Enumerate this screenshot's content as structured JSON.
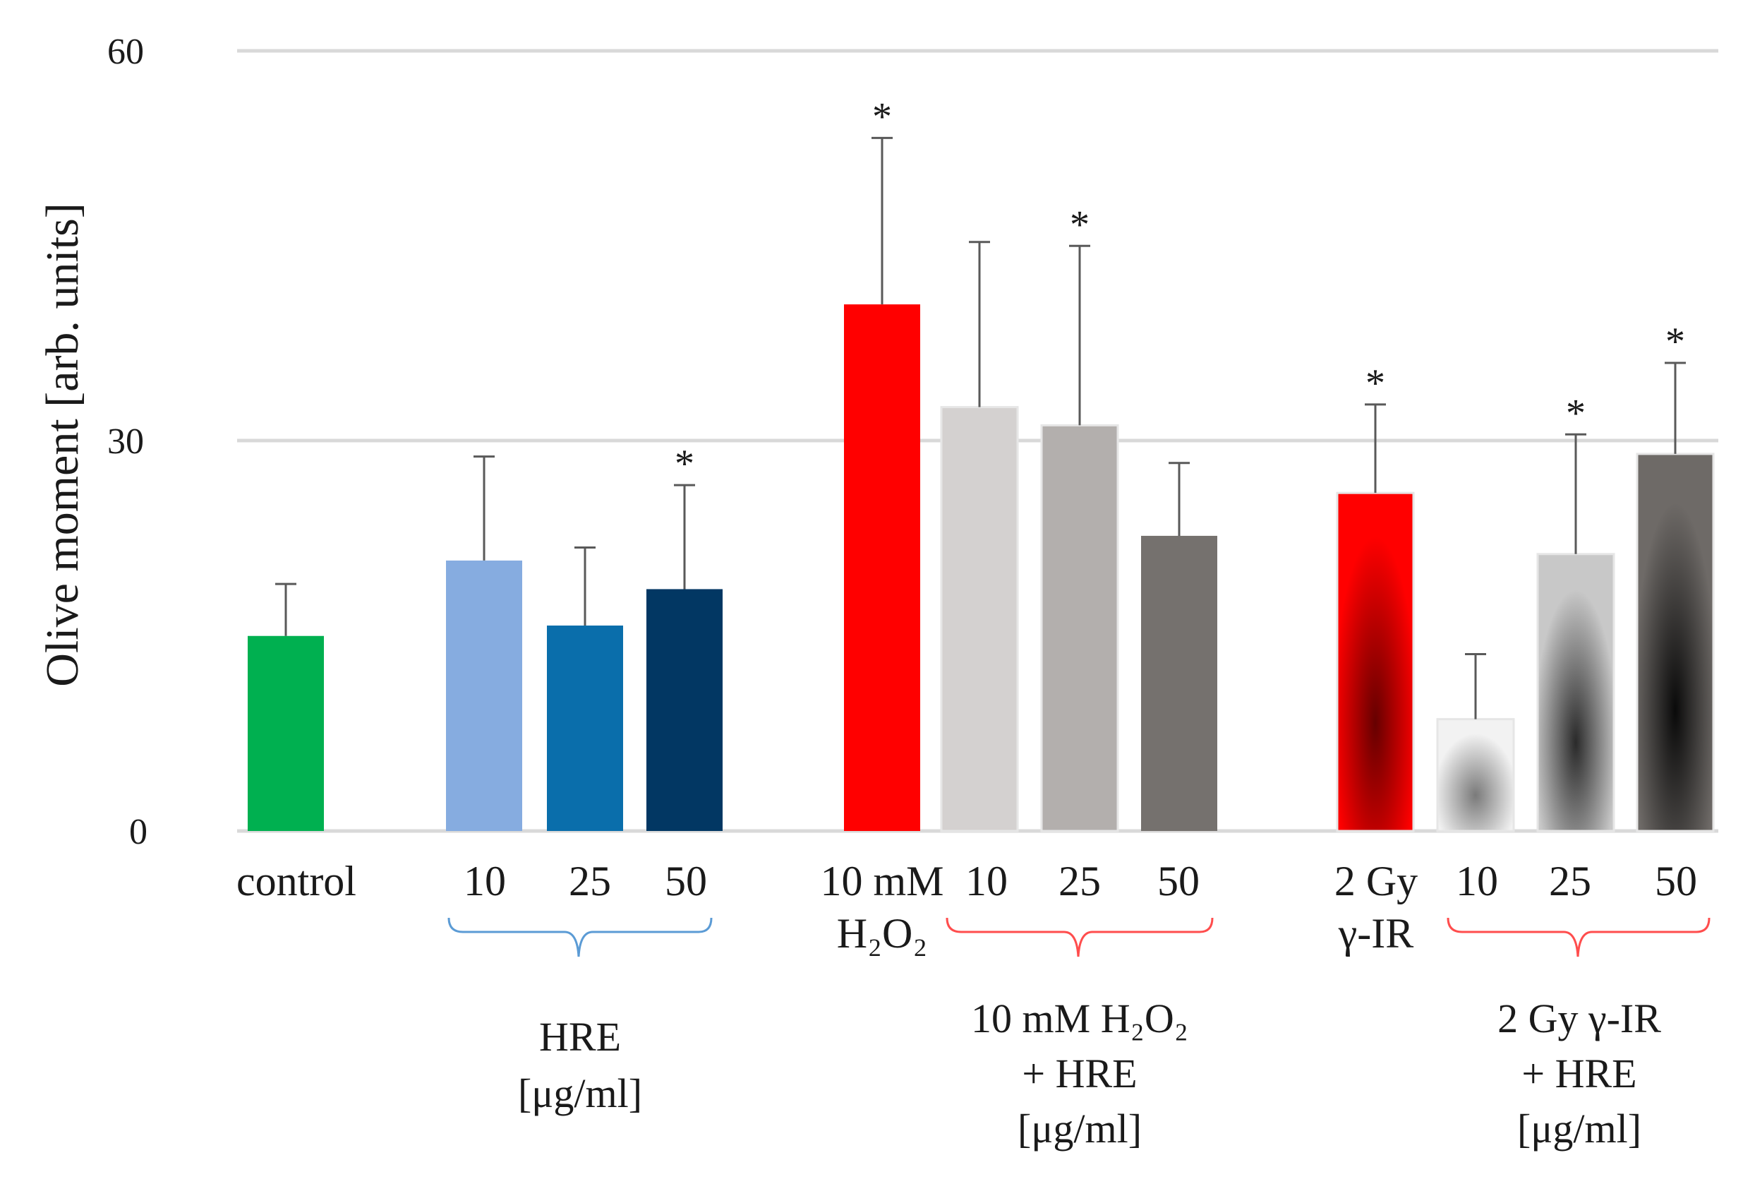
{
  "chart_data": {
    "type": "bar",
    "ylabel": "Olive moment  [arb. units]",
    "ylim": [
      0,
      60
    ],
    "yticks": [
      "0",
      "30",
      "60"
    ],
    "grid": true,
    "bars": [
      {
        "id": "control",
        "value": 15.0,
        "error": 4.0,
        "sig": false,
        "fill": "#00b050",
        "style": "solid"
      },
      {
        "id": "hre-10",
        "value": 20.8,
        "error": 8.0,
        "sig": false,
        "fill": "#86ace0",
        "style": "solid"
      },
      {
        "id": "hre-25",
        "value": 15.8,
        "error": 6.0,
        "sig": false,
        "fill": "#0a6eab",
        "style": "solid"
      },
      {
        "id": "hre-50",
        "value": 18.6,
        "error": 8.0,
        "sig": true,
        "fill": "#023763",
        "style": "solid"
      },
      {
        "id": "h2o2",
        "value": 40.5,
        "error": 12.8,
        "sig": true,
        "fill": "#ff0000",
        "style": "solid"
      },
      {
        "id": "h2o2-hre-10",
        "value": 32.6,
        "error": 12.7,
        "sig": false,
        "fill": "#d4d1d0",
        "style": "solid"
      },
      {
        "id": "h2o2-hre-25",
        "value": 31.2,
        "error": 13.8,
        "sig": true,
        "fill": "#b3afad",
        "style": "solid"
      },
      {
        "id": "h2o2-hre-50",
        "value": 22.7,
        "error": 5.6,
        "sig": false,
        "fill": "#75716e",
        "style": "solid"
      },
      {
        "id": "ir",
        "value": 26.0,
        "error": 6.8,
        "sig": true,
        "fill": "#ff0000",
        "center": "#660000",
        "style": "radial"
      },
      {
        "id": "ir-hre-10",
        "value": 8.6,
        "error": 5.0,
        "sig": false,
        "fill": "#f2f2f2",
        "center": "#7a7a7a",
        "style": "radial"
      },
      {
        "id": "ir-hre-25",
        "value": 21.3,
        "error": 9.2,
        "sig": true,
        "fill": "#c8c8c8",
        "center": "#2a2a2a",
        "style": "radial"
      },
      {
        "id": "ir-hre-50",
        "value": 29.0,
        "error": 7.0,
        "sig": true,
        "fill": "#6e6a67",
        "center": "#0a0a0a",
        "style": "radial"
      }
    ],
    "significance_mark": "*",
    "category_labels": {
      "control": "control",
      "hre": [
        "10",
        "25",
        "50"
      ],
      "h2o2": [
        "10 mM",
        "H₂O₂"
      ],
      "h2o2_hre": [
        "10",
        "25",
        "50"
      ],
      "ir": [
        "2 Gy",
        "γ-IR"
      ],
      "ir_hre": [
        "10",
        "25",
        "50"
      ]
    },
    "group_labels": {
      "hre": [
        "HRE",
        "[μg/ml]"
      ],
      "h2o2_hre": [
        "10 mM H₂O₂",
        "+ HRE",
        "[μg/ml]"
      ],
      "ir_hre": [
        "2 Gy γ-IR",
        "+ HRE",
        "[μg/ml]"
      ]
    },
    "bracket_colors": {
      "hre": "#5b9bd5",
      "h2o2_hre": "#ff4d4d",
      "ir_hre": "#ff4d4d"
    },
    "axis_color": "#d9d9d9",
    "errorbar_color": "#595959"
  }
}
